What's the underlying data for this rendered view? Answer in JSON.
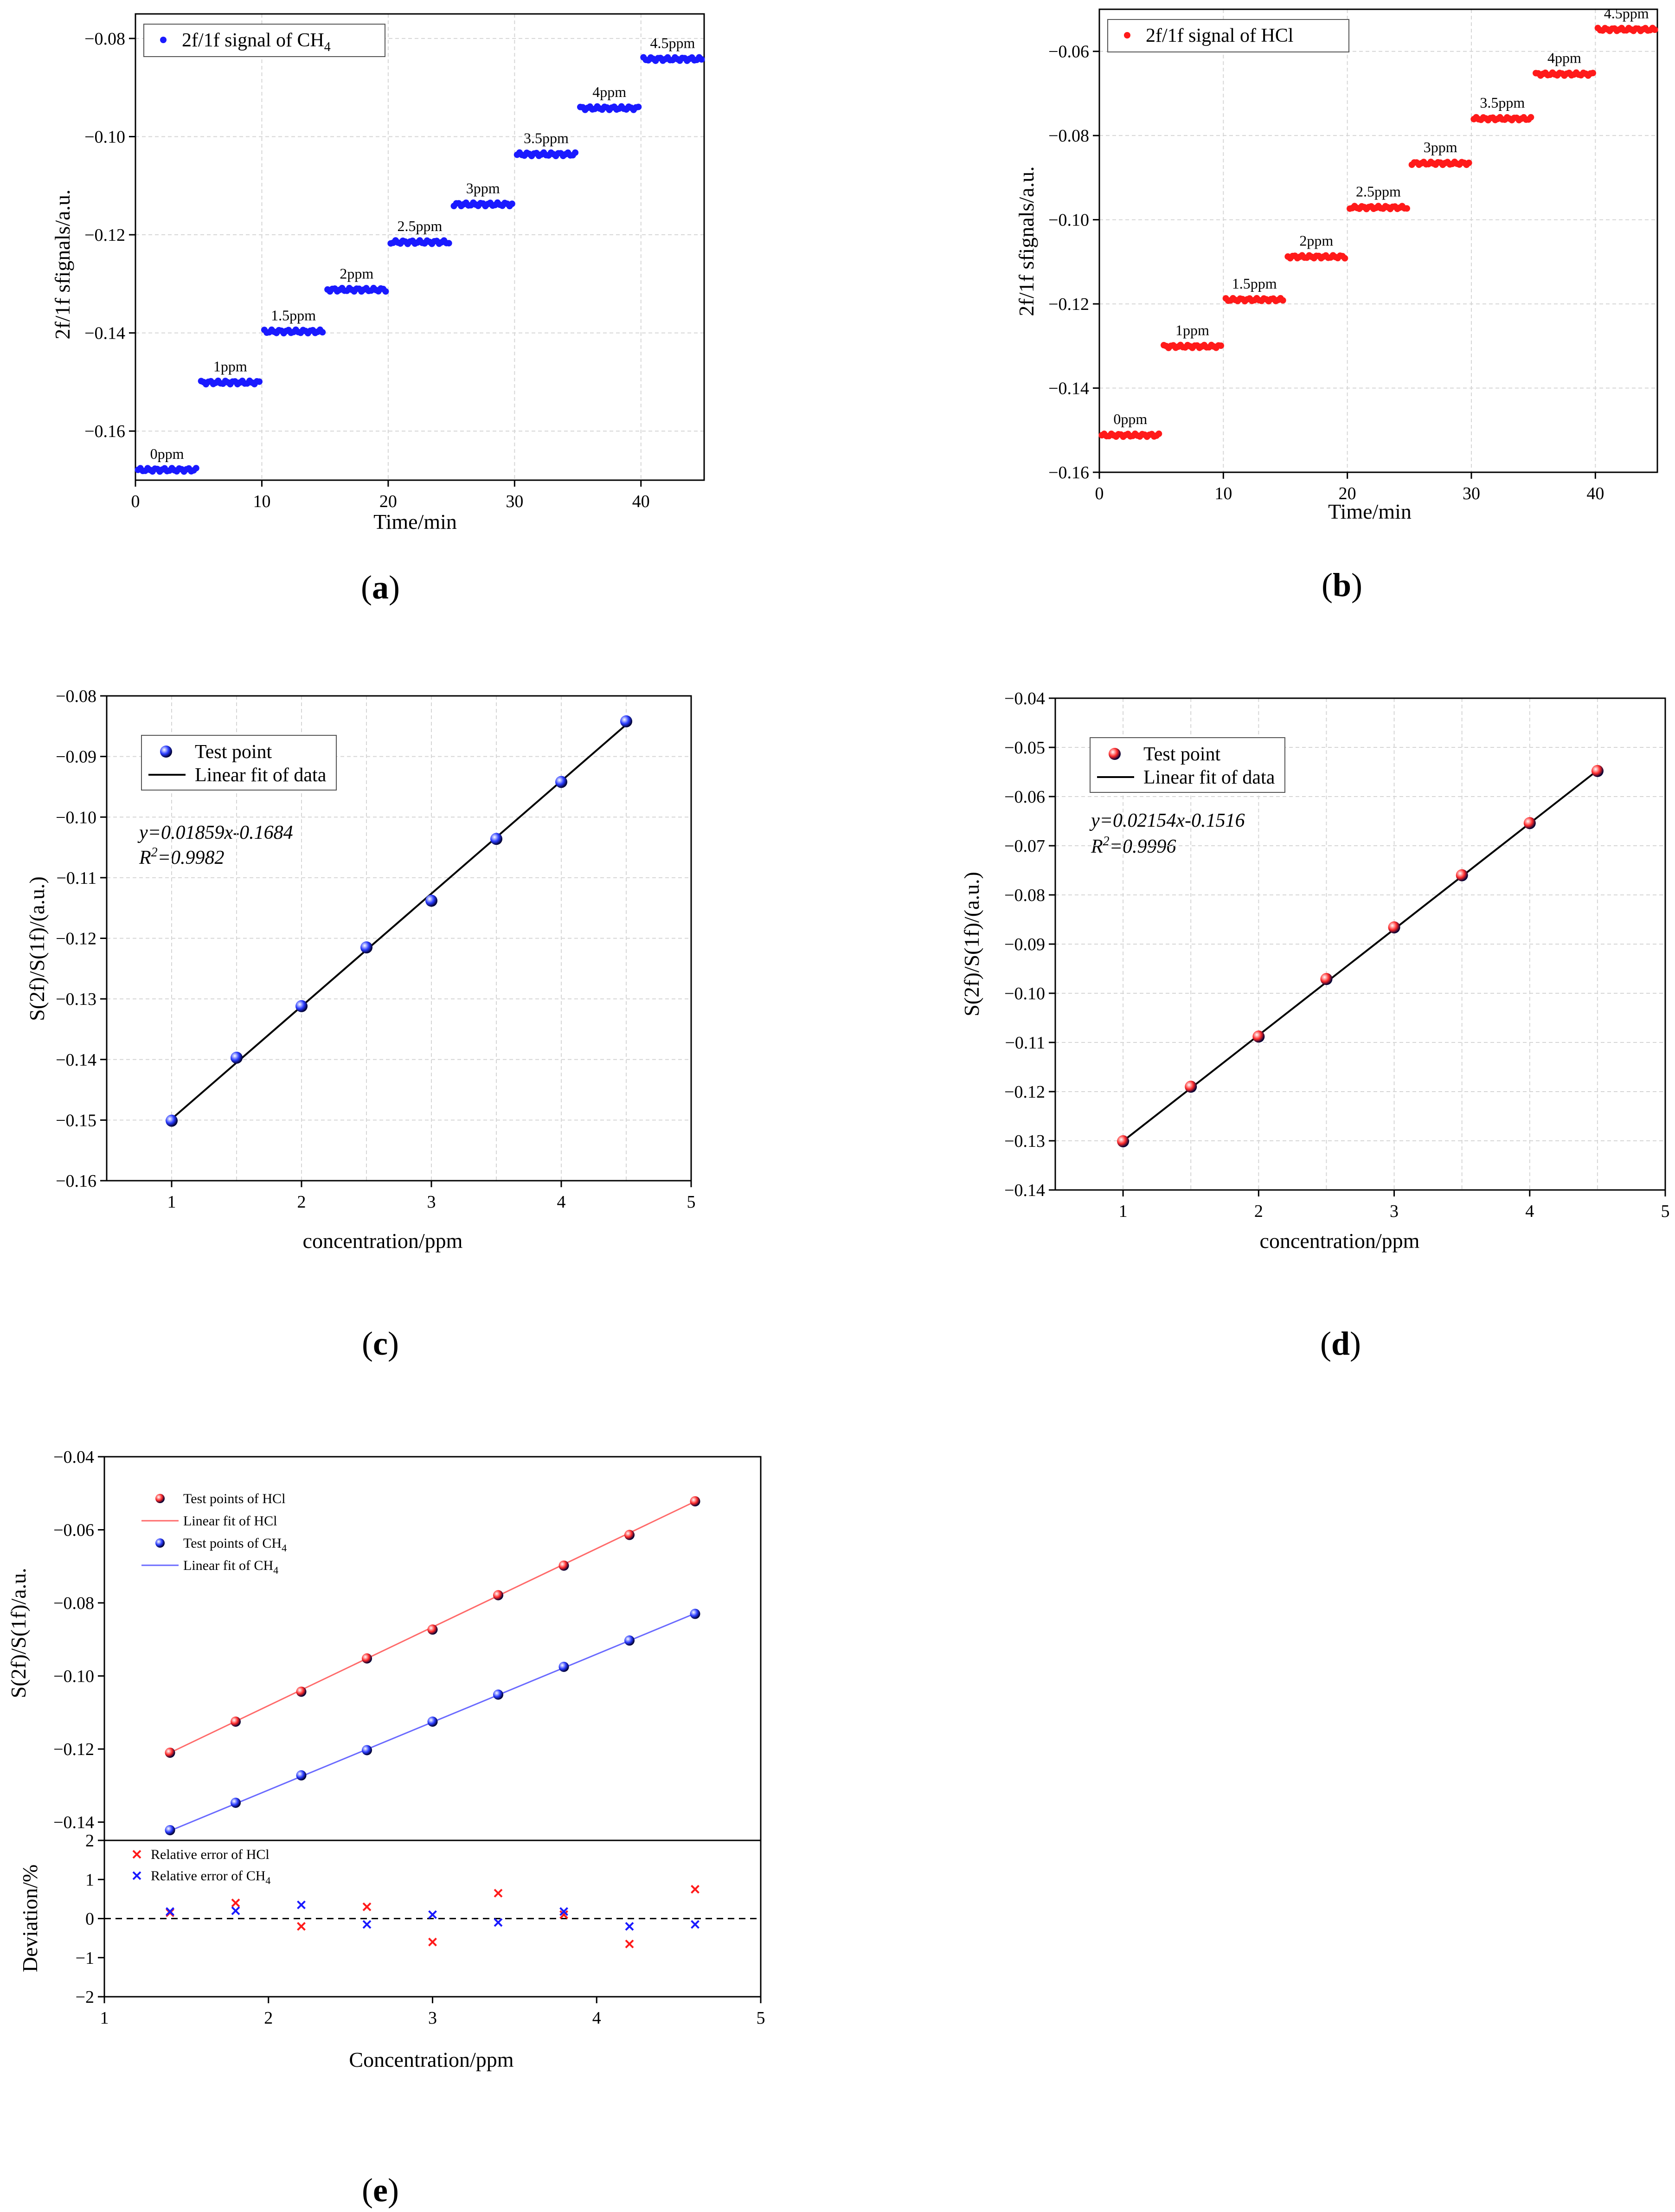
{
  "chart_data": [
    {
      "id": "a",
      "panel_label": "a",
      "type": "scatter",
      "xlabel": "Time/min",
      "ylabel": "2f/1f sfignals/a.u.",
      "xlim": [
        0,
        45
      ],
      "ylim": [
        -0.17,
        -0.075
      ],
      "xticks": [
        0,
        10,
        20,
        30,
        40
      ],
      "xtick_labels": [
        "0",
        "10",
        "20",
        "30",
        "40"
      ],
      "yticks": [
        -0.16,
        -0.14,
        -0.12,
        -0.1,
        -0.08
      ],
      "ytick_labels": [
        "−0.16",
        "−0.14",
        "−0.12",
        "−0.10",
        "−0.08"
      ],
      "legend": {
        "label": "2f/1f signal of CH",
        "sub": "4",
        "color": "#1a1aff",
        "marker": "dot",
        "position": "top-left"
      },
      "color": "#1a1aff",
      "steps": [
        {
          "label": "0ppm",
          "t_start": 0,
          "t_end": 5,
          "value": -0.1679
        },
        {
          "label": "1ppm",
          "t_start": 5,
          "t_end": 10,
          "value": -0.1501
        },
        {
          "label": "1.5ppm",
          "t_start": 10,
          "t_end": 15,
          "value": -0.1397
        },
        {
          "label": "2ppm",
          "t_start": 15,
          "t_end": 20,
          "value": -0.1312
        },
        {
          "label": "2.5ppm",
          "t_start": 20,
          "t_end": 25,
          "value": -0.1215
        },
        {
          "label": "3ppm",
          "t_start": 25,
          "t_end": 30,
          "value": -0.1138
        },
        {
          "label": "3.5ppm",
          "t_start": 30,
          "t_end": 35,
          "value": -0.1036
        },
        {
          "label": "4ppm",
          "t_start": 35,
          "t_end": 40,
          "value": -0.0942
        },
        {
          "label": "4.5ppm",
          "t_start": 40,
          "t_end": 45,
          "value": -0.0842
        }
      ]
    },
    {
      "id": "b",
      "panel_label": "b",
      "type": "scatter",
      "xlabel": "Time/min",
      "ylabel": "2f/1f sfignals/a.u.",
      "xlim": [
        0,
        45
      ],
      "ylim": [
        -0.16,
        -0.05
      ],
      "xticks": [
        0,
        10,
        20,
        30,
        40
      ],
      "xtick_labels": [
        "0",
        "10",
        "20",
        "30",
        "40"
      ],
      "yticks": [
        -0.16,
        -0.14,
        -0.12,
        -0.1,
        -0.08,
        -0.06
      ],
      "ytick_labels": [
        "−0.16",
        "−0.14",
        "−0.12",
        "−0.10",
        "−0.08",
        "−0.06"
      ],
      "legend": {
        "label": "2f/1f signal of HCl",
        "sub": "",
        "color": "#ff1a1a",
        "marker": "dot",
        "position": "top-left"
      },
      "color": "#ff1a1a",
      "steps": [
        {
          "label": "0ppm",
          "t_start": 0,
          "t_end": 5,
          "value": -0.1512
        },
        {
          "label": "1ppm",
          "t_start": 5,
          "t_end": 10,
          "value": -0.1301
        },
        {
          "label": "1.5ppm",
          "t_start": 10,
          "t_end": 15,
          "value": -0.119
        },
        {
          "label": "2ppm",
          "t_start": 15,
          "t_end": 20,
          "value": -0.1088
        },
        {
          "label": "2.5ppm",
          "t_start": 20,
          "t_end": 25,
          "value": -0.0971
        },
        {
          "label": "3ppm",
          "t_start": 25,
          "t_end": 30,
          "value": -0.0866
        },
        {
          "label": "3.5ppm",
          "t_start": 30,
          "t_end": 35,
          "value": -0.076
        },
        {
          "label": "4ppm",
          "t_start": 35,
          "t_end": 40,
          "value": -0.0654
        },
        {
          "label": "4.5ppm",
          "t_start": 40,
          "t_end": 45,
          "value": -0.0548
        }
      ]
    },
    {
      "id": "c",
      "panel_label": "c",
      "type": "scatter",
      "xlabel": "concentration/ppm",
      "ylabel": "S(2f)/S(1f)/(a.u.)",
      "xlim": [
        0.5,
        5
      ],
      "ylim": [
        -0.16,
        -0.08
      ],
      "xticks": [
        1,
        2,
        3,
        4,
        5
      ],
      "xtick_labels": [
        "1",
        "2",
        "3",
        "4",
        "5"
      ],
      "yticks": [
        -0.16,
        -0.15,
        -0.14,
        -0.13,
        -0.12,
        -0.11,
        -0.1,
        -0.09,
        -0.08
      ],
      "ytick_labels": [
        "−0.16",
        "−0.15",
        "−0.14",
        "−0.13",
        "−0.12",
        "−0.11",
        "−0.10",
        "−0.09",
        "−0.08"
      ],
      "color": "#1a1aff",
      "legend": [
        {
          "label": "Test point",
          "marker": "sphere",
          "color": "#1a1aff"
        },
        {
          "label": "Linear fit of data",
          "marker": "line",
          "color": "#000000"
        }
      ],
      "equation": "y=0.01859x-0.1684",
      "r2_prefix": "R",
      "r2_sup": "2",
      "r2_value": "=0.9982",
      "fit": {
        "slope": 0.01859,
        "intercept": -0.1684
      },
      "x": [
        1,
        1.5,
        2,
        2.5,
        3,
        3.5,
        4,
        4.5
      ],
      "y": [
        -0.1501,
        -0.1397,
        -0.1312,
        -0.1215,
        -0.1138,
        -0.1036,
        -0.0942,
        -0.0842
      ]
    },
    {
      "id": "d",
      "panel_label": "d",
      "type": "scatter",
      "xlabel": "concentration/ppm",
      "ylabel": "S(2f)/S(1f)/(a.u.)",
      "xlim": [
        0.5,
        5
      ],
      "ylim": [
        -0.14,
        -0.04
      ],
      "xticks": [
        1,
        2,
        3,
        4,
        5
      ],
      "xtick_labels": [
        "1",
        "2",
        "3",
        "4",
        "5"
      ],
      "yticks": [
        -0.14,
        -0.13,
        -0.12,
        -0.11,
        -0.1,
        -0.09,
        -0.08,
        -0.07,
        -0.06,
        -0.05,
        -0.04
      ],
      "ytick_labels": [
        "−0.14",
        "−0.13",
        "−0.12",
        "−0.11",
        "−0.10",
        "−0.09",
        "−0.08",
        "−0.07",
        "−0.06",
        "−0.05",
        "−0.04"
      ],
      "color": "#ff1a1a",
      "legend": [
        {
          "label": "Test point",
          "marker": "sphere",
          "color": "#ff1a1a"
        },
        {
          "label": "Linear fit of data",
          "marker": "line",
          "color": "#000000"
        }
      ],
      "equation": "y=0.02154x-0.1516",
      "r2_prefix": "R",
      "r2_sup": "2",
      "r2_value": "=0.9996",
      "fit": {
        "slope": 0.02154,
        "intercept": -0.1516
      },
      "x": [
        1,
        1.5,
        2,
        2.5,
        3,
        3.5,
        4,
        4.5
      ],
      "y": [
        -0.1301,
        -0.119,
        -0.1088,
        -0.0971,
        -0.0866,
        -0.076,
        -0.0654,
        -0.0548
      ]
    },
    {
      "id": "e-top",
      "panel_label": "e",
      "type": "scatter",
      "xlabel": "Concentration/ppm",
      "ylabel": "S(2f)/S(1f)/a.u.",
      "xlim": [
        1,
        5
      ],
      "ylim": [
        -0.145,
        -0.04
      ],
      "yticks": [
        -0.14,
        -0.12,
        -0.1,
        -0.08,
        -0.06,
        -0.04
      ],
      "ytick_labels": [
        "−0.14",
        "−0.12",
        "−0.10",
        "−0.08",
        "−0.06",
        "−0.04"
      ],
      "legend": [
        {
          "label": "Test points of HCl",
          "sub": "",
          "marker": "sphere",
          "color": "#ff1a1a"
        },
        {
          "label": "Linear fit of HCl",
          "sub": "",
          "marker": "line",
          "color": "#ff6a6a"
        },
        {
          "label": "Test points of CH",
          "sub": "4",
          "marker": "sphere",
          "color": "#1a1aff"
        },
        {
          "label": "Linear fit of CH",
          "sub": "4",
          "marker": "line",
          "color": "#6a6aff"
        }
      ],
      "series": [
        {
          "name": "Test points of HCl",
          "color": "#ff1a1a",
          "fit_color": "#ff6a6a",
          "x": [
            1.4,
            1.8,
            2.2,
            2.6,
            3.0,
            3.4,
            3.8,
            4.2,
            4.6
          ],
          "y": [
            -0.121,
            -0.1125,
            -0.1043,
            -0.0952,
            -0.0873,
            -0.0779,
            -0.0698,
            -0.0614,
            -0.0522
          ],
          "fit": {
            "slope": 0.02149,
            "intercept": -0.1511
          }
        },
        {
          "name": "Test points of CH4",
          "color": "#1a1aff",
          "fit_color": "#6a6aff",
          "x": [
            1.4,
            1.8,
            2.2,
            2.6,
            3.0,
            3.4,
            3.8,
            4.2,
            4.6
          ],
          "y": [
            -0.1422,
            -0.1347,
            -0.1272,
            -0.1203,
            -0.1125,
            -0.1051,
            -0.0975,
            -0.0903,
            -0.083
          ],
          "fit": {
            "slope": 0.01859,
            "intercept": -0.1684
          }
        }
      ]
    },
    {
      "id": "e-bottom",
      "type": "scatter",
      "xlabel": "Concentration/ppm",
      "ylabel": "Deviation/%",
      "xlim": [
        1,
        5
      ],
      "ylim": [
        -2,
        2
      ],
      "xticks": [
        1,
        2,
        3,
        4,
        5
      ],
      "xtick_labels": [
        "1",
        "2",
        "3",
        "4",
        "5"
      ],
      "yticks": [
        -2,
        -1,
        0,
        1,
        2
      ],
      "ytick_labels": [
        "−2",
        "−1",
        "0",
        "1",
        "2"
      ],
      "legend": [
        {
          "label": "Relative error of HCl",
          "sub": "",
          "color": "#ff1a1a"
        },
        {
          "label": "Relative error of CH",
          "sub": "4",
          "color": "#1a1aff"
        }
      ],
      "series": [
        {
          "name": "Relative error of HCl",
          "color": "#ff1a1a",
          "x": [
            1.4,
            1.8,
            2.2,
            2.6,
            3.0,
            3.4,
            3.8,
            4.2,
            4.6
          ],
          "y": [
            0.15,
            0.4,
            -0.2,
            0.3,
            -0.6,
            0.65,
            0.1,
            -0.65,
            0.75
          ]
        },
        {
          "name": "Relative error of CH4",
          "color": "#1a1aff",
          "x": [
            1.4,
            1.8,
            2.2,
            2.6,
            3.0,
            3.4,
            3.8,
            4.2,
            4.6
          ],
          "y": [
            0.18,
            0.2,
            0.35,
            -0.15,
            0.1,
            -0.1,
            0.18,
            -0.2,
            -0.15
          ]
        }
      ],
      "reference_line": 0
    }
  ]
}
